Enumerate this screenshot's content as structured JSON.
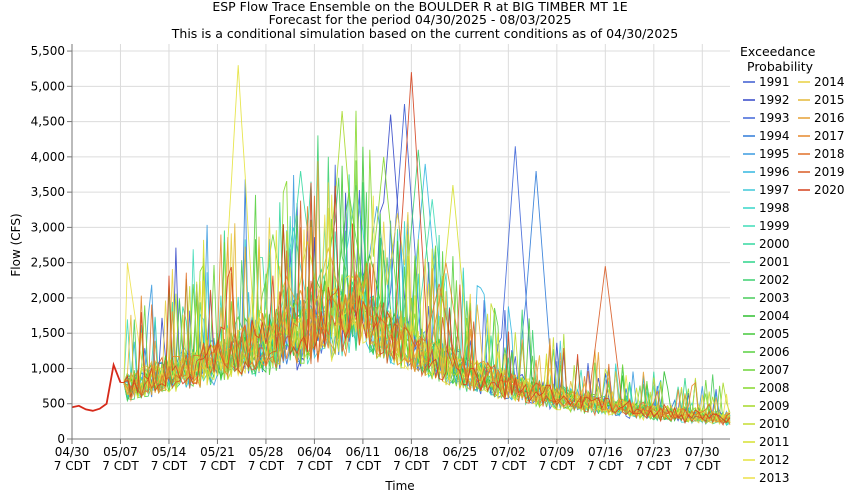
{
  "chart_data": {
    "type": "line",
    "title": "ESP Flow Trace Ensemble on the BOULDER R at BIG TIMBER MT 1E",
    "subtitle1": "Forecast for the period 04/30/2025 - 08/03/2025",
    "subtitle2": "This is a conditional simulation based on the current conditions as of 04/30/2025",
    "xlabel": "Time",
    "ylabel": "Flow (CFS)",
    "ylim": [
      0,
      5600
    ],
    "yticks": [
      0,
      500,
      1000,
      1500,
      2000,
      2500,
      3000,
      3500,
      4000,
      4500,
      5000,
      5500
    ],
    "ytick_labels": [
      "0",
      "500",
      "1,000",
      "1,500",
      "2,000",
      "2,500",
      "3,000",
      "3,500",
      "4,000",
      "4,500",
      "5,000",
      "5,500"
    ],
    "xlim": [
      "2025-04-30",
      "2025-08-03"
    ],
    "xticks": [
      "04/30",
      "05/07",
      "05/14",
      "05/21",
      "05/28",
      "06/04",
      "06/11",
      "06/18",
      "06/25",
      "07/02",
      "07/09",
      "07/16",
      "07/23",
      "07/30"
    ],
    "xtick_sublabel": "7 CDT",
    "grid": true,
    "legend_title": "Exceedance Probability",
    "legend_title_line1": "Exceedance",
    "legend_title_line2": "Probability",
    "legend_placement": "right",
    "observed": {
      "color": "#d62a1a",
      "points": [
        [
          "04/30",
          450
        ],
        [
          "05/01",
          470
        ],
        [
          "05/02",
          420
        ],
        [
          "05/03",
          400
        ],
        [
          "05/04",
          430
        ],
        [
          "05/05",
          500
        ],
        [
          "05/06",
          1050
        ],
        [
          "05/07",
          800
        ]
      ]
    },
    "series": [
      {
        "name": "1991",
        "color": "#3b5bd0",
        "peak_date": "06/17",
        "peak": 4750
      },
      {
        "name": "1992",
        "color": "#3347c8",
        "peak_date": "06/15",
        "peak": 4600
      },
      {
        "name": "1993",
        "color": "#4066d8",
        "peak_date": "07/03",
        "peak": 4150
      },
      {
        "name": "1994",
        "color": "#2f7bd8",
        "peak_date": "07/06",
        "peak": 3800
      },
      {
        "name": "1995",
        "color": "#3b9be0",
        "peak_date": "06/13",
        "peak": 3300
      },
      {
        "name": "1996",
        "color": "#33b7e0",
        "peak_date": "06/20",
        "peak": 3900
      },
      {
        "name": "1997",
        "color": "#3fc8d8",
        "peak_date": "06/10",
        "peak": 3600
      },
      {
        "name": "1998",
        "color": "#36d6c8",
        "peak_date": "06/01",
        "peak": 3000
      },
      {
        "name": "1999",
        "color": "#3fdcb8",
        "peak_date": "06/21",
        "peak": 3400
      },
      {
        "name": "2000",
        "color": "#34d8a0",
        "peak_date": "06/02",
        "peak": 3800
      },
      {
        "name": "2001",
        "color": "#2cd48a",
        "peak_date": "06/05",
        "peak": 2400
      },
      {
        "name": "2002",
        "color": "#3cd070",
        "peak_date": "06/19",
        "peak": 4100
      },
      {
        "name": "2003",
        "color": "#48cc5a",
        "peak_date": "06/07",
        "peak": 3100
      },
      {
        "name": "2004",
        "color": "#2fbf30",
        "peak_date": "06/12",
        "peak": 2600
      },
      {
        "name": "2005",
        "color": "#44c83a",
        "peak_date": "06/04",
        "peak": 2300
      },
      {
        "name": "2006",
        "color": "#58d040",
        "peak_date": "06/09",
        "peak": 3500
      },
      {
        "name": "2007",
        "color": "#6cd438",
        "peak_date": "05/29",
        "peak": 2900
      },
      {
        "name": "2008",
        "color": "#86d82c",
        "peak_date": "06/14",
        "peak": 4000
      },
      {
        "name": "2009",
        "color": "#a6d828",
        "peak_date": "06/08",
        "peak": 4650
      },
      {
        "name": "2010",
        "color": "#c4dc30",
        "peak_date": "06/03",
        "peak": 2800
      },
      {
        "name": "2011",
        "color": "#d6e030",
        "peak_date": "06/24",
        "peak": 3600
      },
      {
        "name": "2012",
        "color": "#e4e23c",
        "peak_date": "05/24",
        "peak": 5300
      },
      {
        "name": "2013",
        "color": "#ece048",
        "peak_date": "05/08",
        "peak": 2500
      },
      {
        "name": "2014",
        "color": "#e8d040",
        "peak_date": "06/16",
        "peak": 3200
      },
      {
        "name": "2015",
        "color": "#e4b838",
        "peak_date": "06/06",
        "peak": 2700
      },
      {
        "name": "2016",
        "color": "#e6a034",
        "peak_date": "05/31",
        "peak": 2300
      },
      {
        "name": "2017",
        "color": "#e6882c",
        "peak_date": "06/23",
        "peak": 2500
      },
      {
        "name": "2018",
        "color": "#e07028",
        "peak_date": "06/22",
        "peak": 2200
      },
      {
        "name": "2019",
        "color": "#d85a24",
        "peak_date": "07/16",
        "peak": 2450
      },
      {
        "name": "2020",
        "color": "#d4401c",
        "peak_date": "06/18",
        "peak": 5200
      }
    ]
  }
}
